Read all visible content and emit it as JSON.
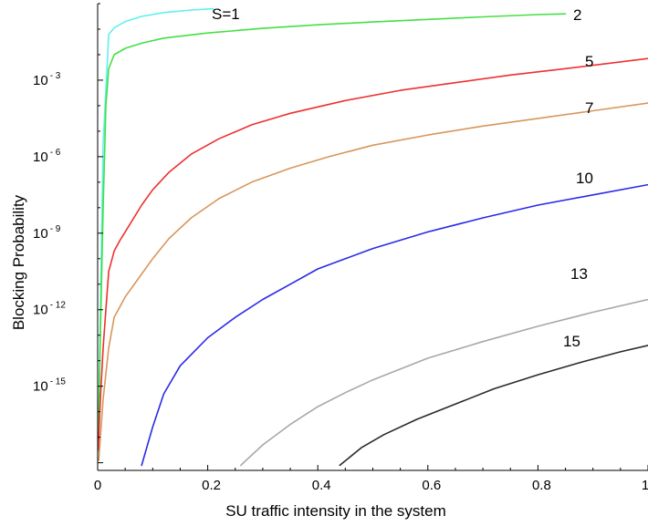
{
  "chart_data": {
    "type": "line",
    "xlabel": "SU traffic intensity in the system",
    "ylabel": "Blocking Probability",
    "y_scale": "log",
    "xlim": [
      0,
      1
    ],
    "ylim_log10": [
      -18.3,
      0
    ],
    "grid": false,
    "legend": "labels at line ends",
    "x_ticks": [
      {
        "value": 0,
        "label": "0"
      },
      {
        "value": 0.2,
        "label": "0.2"
      },
      {
        "value": 0.4,
        "label": "0.4"
      },
      {
        "value": 0.6,
        "label": "0.6"
      },
      {
        "value": 0.8,
        "label": "0.8"
      },
      {
        "value": 1,
        "label": "1"
      }
    ],
    "y_ticks": [
      {
        "log10": -3,
        "base": "10",
        "exp": "- 3"
      },
      {
        "log10": -6,
        "base": "10",
        "exp": "- 6"
      },
      {
        "log10": -9,
        "base": "10",
        "exp": "- 9"
      },
      {
        "log10": -12,
        "base": "10",
        "exp": "- 12"
      },
      {
        "log10": -15,
        "base": "10",
        "exp": "- 15"
      }
    ],
    "series": [
      {
        "name": "S=1",
        "color": "#5ef0f0",
        "x": [
          0.001,
          0.005,
          0.01,
          0.02,
          0.03,
          0.05,
          0.08,
          0.12,
          0.17,
          0.21
        ],
        "log10_y": [
          -17.6,
          -12.0,
          -5.5,
          -1.2,
          -0.95,
          -0.7,
          -0.5,
          -0.35,
          -0.25,
          -0.2
        ]
      },
      {
        "name": "2",
        "color": "#44e044",
        "x": [
          0.001,
          0.005,
          0.01,
          0.015,
          0.02,
          0.03,
          0.05,
          0.08,
          0.12,
          0.2,
          0.3,
          0.4,
          0.5,
          0.6,
          0.7,
          0.8,
          0.85
        ],
        "log10_y": [
          -17.5,
          -13.0,
          -8.0,
          -4.0,
          -2.55,
          -2.0,
          -1.75,
          -1.55,
          -1.35,
          -1.15,
          -0.97,
          -0.83,
          -0.72,
          -0.62,
          -0.52,
          -0.43,
          -0.4
        ]
      },
      {
        "name": "5",
        "color": "#ee3030",
        "x": [
          0.001,
          0.005,
          0.01,
          0.015,
          0.02,
          0.03,
          0.04,
          0.06,
          0.08,
          0.1,
          0.13,
          0.17,
          0.22,
          0.28,
          0.35,
          0.45,
          0.55,
          0.65,
          0.75,
          0.85,
          1.0
        ],
        "log10_y": [
          -17.5,
          -15.5,
          -13.5,
          -12.0,
          -10.5,
          -9.7,
          -9.3,
          -8.6,
          -7.9,
          -7.3,
          -6.6,
          -5.9,
          -5.3,
          -4.75,
          -4.3,
          -3.8,
          -3.4,
          -3.1,
          -2.8,
          -2.55,
          -2.15
        ]
      },
      {
        "name": "7",
        "color": "#d8965a",
        "x": [
          0.002,
          0.01,
          0.02,
          0.03,
          0.05,
          0.08,
          0.1,
          0.13,
          0.17,
          0.22,
          0.28,
          0.35,
          0.42,
          0.5,
          0.6,
          0.7,
          0.8,
          0.9,
          1.0
        ],
        "log10_y": [
          -17.9,
          -15.5,
          -13.5,
          -12.3,
          -11.5,
          -10.6,
          -10.0,
          -9.2,
          -8.4,
          -7.65,
          -7.0,
          -6.45,
          -6.0,
          -5.55,
          -5.15,
          -4.8,
          -4.5,
          -4.2,
          -3.9
        ]
      },
      {
        "name": "10",
        "color": "#2a2ae8",
        "x": [
          0.08,
          0.1,
          0.12,
          0.15,
          0.2,
          0.25,
          0.3,
          0.35,
          0.4,
          0.45,
          0.5,
          0.6,
          0.7,
          0.8,
          0.9,
          1.0
        ],
        "log10_y": [
          -18.1,
          -16.6,
          -15.3,
          -14.2,
          -13.1,
          -12.3,
          -11.6,
          -11.0,
          -10.4,
          -10.0,
          -9.6,
          -8.95,
          -8.4,
          -7.9,
          -7.5,
          -7.1
        ]
      },
      {
        "name": "13",
        "color": "#a8a8a8",
        "x": [
          0.26,
          0.3,
          0.35,
          0.4,
          0.45,
          0.5,
          0.6,
          0.7,
          0.8,
          0.9,
          1.0
        ],
        "log10_y": [
          -18.1,
          -17.3,
          -16.5,
          -15.8,
          -15.25,
          -14.75,
          -13.9,
          -13.25,
          -12.65,
          -12.1,
          -11.6
        ]
      },
      {
        "name": "15",
        "color": "#2a2a2a",
        "x": [
          0.44,
          0.48,
          0.52,
          0.58,
          0.65,
          0.72,
          0.8,
          0.88,
          0.95,
          1.0
        ],
        "log10_y": [
          -18.1,
          -17.4,
          -16.9,
          -16.3,
          -15.7,
          -15.1,
          -14.55,
          -14.05,
          -13.65,
          -13.4
        ]
      }
    ]
  }
}
